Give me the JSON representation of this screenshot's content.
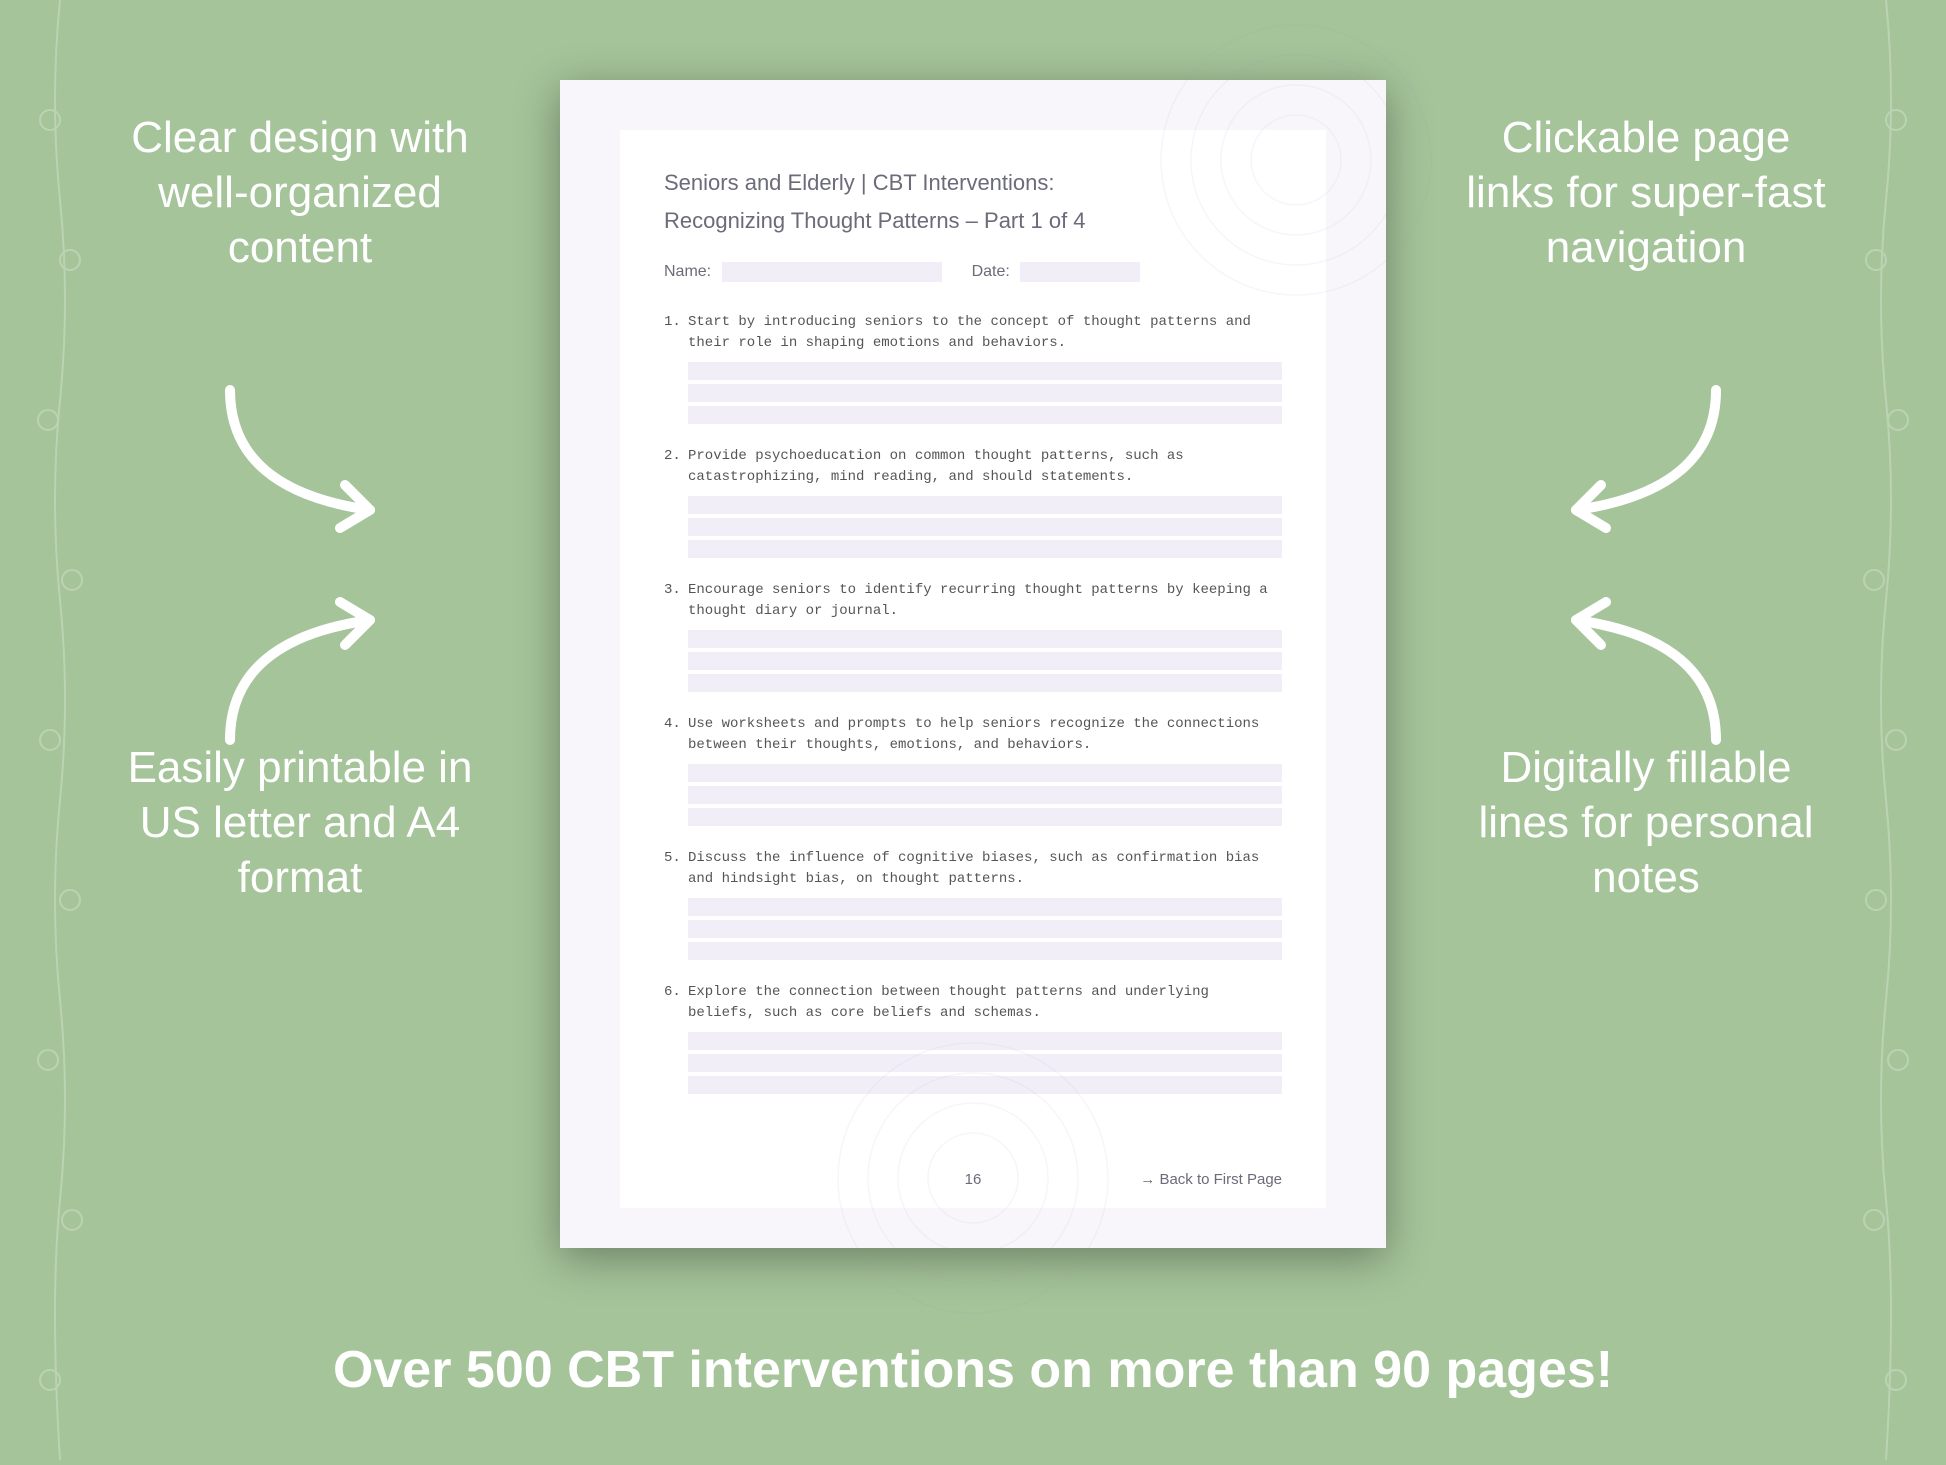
{
  "background_color": "#a5c49a",
  "text_color": "#ffffff",
  "callouts": {
    "top_left": "Clear design with well-organized content",
    "top_right": "Clickable page links for super-fast navigation",
    "bottom_left": "Easily printable in US letter and A4 format",
    "bottom_right": "Digitally fillable lines for personal notes"
  },
  "bottom_banner": "Over 500 CBT interventions on more than 90 pages!",
  "document": {
    "page_bg": "#f8f6fb",
    "inner_bg": "#ffffff",
    "fill_color": "#f2eef8",
    "text_color": "#6b6b7a",
    "title_line1": "Seniors and Elderly | CBT Interventions:",
    "title_line2": "Recognizing Thought Patterns  – Part 1 of 4",
    "name_label": "Name:",
    "date_label": "Date:",
    "items": [
      {
        "num": "1.",
        "text": "Start by introducing seniors to the concept of thought patterns and their role in shaping emotions and behaviors."
      },
      {
        "num": "2.",
        "text": "Provide psychoeducation on common thought patterns, such as catastrophizing, mind reading, and should statements."
      },
      {
        "num": "3.",
        "text": "Encourage seniors to identify recurring thought patterns by keeping a thought diary or journal."
      },
      {
        "num": "4.",
        "text": "Use worksheets and prompts to help seniors recognize the connections between their thoughts, emotions, and behaviors."
      },
      {
        "num": "5.",
        "text": "Discuss the influence of cognitive biases, such as confirmation bias and hindsight bias, on thought patterns."
      },
      {
        "num": "6.",
        "text": "Explore the connection between thought patterns and underlying beliefs, such as core beliefs and schemas."
      }
    ],
    "page_number": "16",
    "back_link": "→ Back to First Page"
  }
}
